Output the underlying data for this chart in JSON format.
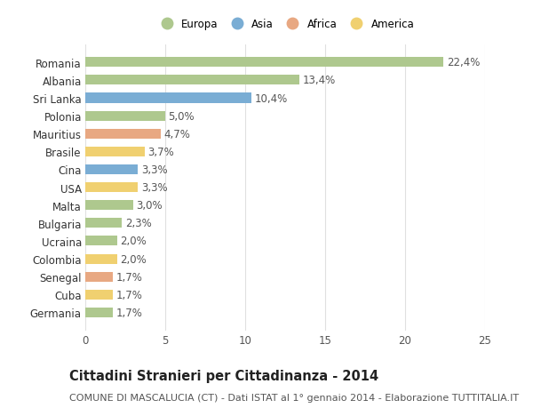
{
  "countries": [
    "Romania",
    "Albania",
    "Sri Lanka",
    "Polonia",
    "Mauritius",
    "Brasile",
    "Cina",
    "USA",
    "Malta",
    "Bulgaria",
    "Ucraina",
    "Colombia",
    "Senegal",
    "Cuba",
    "Germania"
  ],
  "values": [
    22.4,
    13.4,
    10.4,
    5.0,
    4.7,
    3.7,
    3.3,
    3.3,
    3.0,
    2.3,
    2.0,
    2.0,
    1.7,
    1.7,
    1.7
  ],
  "labels": [
    "22,4%",
    "13,4%",
    "10,4%",
    "5,0%",
    "4,7%",
    "3,7%",
    "3,3%",
    "3,3%",
    "3,0%",
    "2,3%",
    "2,0%",
    "2,0%",
    "1,7%",
    "1,7%",
    "1,7%"
  ],
  "continents": [
    "Europa",
    "Europa",
    "Asia",
    "Europa",
    "Africa",
    "America",
    "Asia",
    "America",
    "Europa",
    "Europa",
    "Europa",
    "America",
    "Africa",
    "America",
    "Europa"
  ],
  "continent_colors": {
    "Europa": "#aec88e",
    "Asia": "#7aadd4",
    "Africa": "#e8a882",
    "America": "#f0d070"
  },
  "legend_order": [
    "Europa",
    "Asia",
    "Africa",
    "America"
  ],
  "title": "Cittadini Stranieri per Cittadinanza - 2014",
  "subtitle": "COMUNE DI MASCALUCIA (CT) - Dati ISTAT al 1° gennaio 2014 - Elaborazione TUTTITALIA.IT",
  "xlim": [
    0,
    25
  ],
  "xticks": [
    0,
    5,
    10,
    15,
    20,
    25
  ],
  "background_color": "#ffffff",
  "grid_color": "#e0e0e0",
  "bar_height": 0.55,
  "label_fontsize": 8.5,
  "tick_fontsize": 8.5,
  "title_fontsize": 10.5,
  "subtitle_fontsize": 8
}
